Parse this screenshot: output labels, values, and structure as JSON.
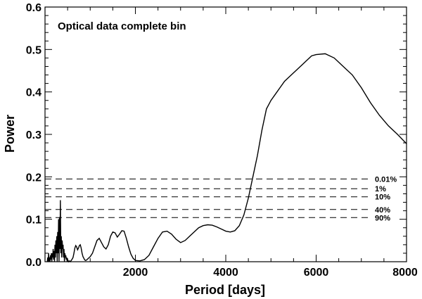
{
  "chart_data": {
    "type": "line",
    "annotation": "Optical data complete bin",
    "xlabel": "Period [days]",
    "ylabel": "Power",
    "xlim": [
      0,
      8000
    ],
    "ylim": [
      0,
      0.6
    ],
    "x_ticks": [
      2000,
      4000,
      6000,
      8000
    ],
    "y_ticks": [
      0.0,
      0.1,
      0.2,
      0.3,
      0.4,
      0.5,
      0.6
    ],
    "y_tick_labels": [
      "0.0",
      "0.1",
      "0.2",
      "0.3",
      "0.4",
      "0.5",
      "0.6"
    ],
    "grid": false,
    "thresholds": [
      {
        "label": "0.01%",
        "value": 0.195
      },
      {
        "label": "1%",
        "value": 0.172
      },
      {
        "label": "10%",
        "value": 0.153
      },
      {
        "label": "40%",
        "value": 0.123
      },
      {
        "label": "90%",
        "value": 0.104
      }
    ],
    "series": [
      {
        "x": [
          50,
          60,
          70,
          80,
          90,
          100,
          110,
          120,
          130,
          140,
          150,
          160,
          170,
          180,
          190,
          200,
          210,
          220,
          230,
          240,
          250,
          260,
          270,
          280,
          290,
          300,
          310,
          320,
          330,
          340,
          350,
          360,
          370,
          380,
          390,
          400,
          410,
          420,
          430,
          440,
          450,
          460,
          470,
          480,
          490,
          500,
          520,
          540,
          560,
          580,
          600,
          620,
          640,
          660,
          680,
          700,
          720,
          740,
          760,
          780,
          800,
          820,
          840,
          860,
          880,
          900,
          920,
          940,
          960,
          980,
          1000,
          1050,
          1100,
          1150,
          1200,
          1250,
          1300,
          1350,
          1400,
          1450,
          1500,
          1550,
          1600,
          1650,
          1700,
          1750,
          1800,
          1850,
          1900,
          1950,
          2000,
          2100,
          2200,
          2300,
          2400,
          2500,
          2600,
          2700,
          2800,
          2900,
          3000,
          3100,
          3200,
          3300,
          3400,
          3500,
          3600,
          3700,
          3800,
          3900,
          4000,
          4100,
          4200,
          4300,
          4400,
          4500,
          4600,
          4700,
          4800,
          4900,
          5000,
          5100,
          5200,
          5300,
          5400,
          5500,
          5600,
          5700,
          5800,
          5900,
          6000,
          6200,
          6400,
          6550,
          6800,
          7000,
          7200,
          7400,
          7600,
          7800,
          8000
        ],
        "values": [
          0.0,
          0.01,
          0.0,
          0.02,
          0.0,
          0.01,
          0.0,
          0.015,
          0.005,
          0.02,
          0.0,
          0.02,
          0.01,
          0.03,
          0.005,
          0.025,
          0.0,
          0.04,
          0.01,
          0.05,
          0.02,
          0.06,
          0.0,
          0.07,
          0.02,
          0.1,
          0.0,
          0.105,
          0.03,
          0.145,
          0.02,
          0.06,
          0.01,
          0.05,
          0.03,
          0.04,
          0.01,
          0.03,
          0.0,
          0.02,
          0.01,
          0.015,
          0.005,
          0.01,
          0.0,
          0.005,
          0.0,
          0.002,
          0.0,
          0.003,
          0.006,
          0.01,
          0.02,
          0.032,
          0.038,
          0.035,
          0.028,
          0.032,
          0.038,
          0.04,
          0.032,
          0.02,
          0.012,
          0.008,
          0.004,
          0.003,
          0.004,
          0.006,
          0.008,
          0.01,
          0.012,
          0.02,
          0.035,
          0.05,
          0.055,
          0.045,
          0.035,
          0.03,
          0.04,
          0.06,
          0.07,
          0.068,
          0.058,
          0.065,
          0.073,
          0.072,
          0.055,
          0.035,
          0.018,
          0.008,
          0.003,
          0.002,
          0.005,
          0.015,
          0.035,
          0.055,
          0.07,
          0.072,
          0.065,
          0.053,
          0.045,
          0.05,
          0.06,
          0.07,
          0.08,
          0.085,
          0.087,
          0.086,
          0.082,
          0.077,
          0.072,
          0.07,
          0.073,
          0.085,
          0.11,
          0.15,
          0.2,
          0.25,
          0.31,
          0.36,
          0.38,
          0.395,
          0.41,
          0.425,
          0.435,
          0.445,
          0.455,
          0.465,
          0.475,
          0.485,
          0.488,
          0.49,
          0.48,
          0.465,
          0.44,
          0.41,
          0.375,
          0.345,
          0.32,
          0.3,
          0.278
        ]
      }
    ]
  }
}
